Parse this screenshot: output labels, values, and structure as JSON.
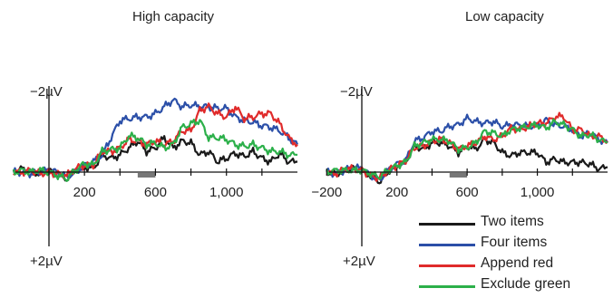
{
  "chart_data": [
    {
      "type": "line",
      "title": "High capacity",
      "xlabel": "",
      "ylabel": "",
      "y_top_label": "−2µV",
      "y_bottom_label": "+2µV",
      "x_tick_labels": [
        "200",
        "600",
        "1,000"
      ],
      "x_ticks": [
        200,
        400,
        600,
        800,
        1000,
        1200
      ],
      "xlim": [
        -200,
        1400
      ],
      "ylim_inverted": [
        2,
        -2
      ],
      "highlight_window": [
        500,
        600
      ],
      "x": [
        -200,
        -150,
        -100,
        -50,
        0,
        50,
        100,
        150,
        200,
        250,
        300,
        350,
        400,
        450,
        500,
        550,
        600,
        650,
        700,
        750,
        800,
        850,
        900,
        950,
        1000,
        1050,
        1100,
        1150,
        1200,
        1250,
        1300,
        1350,
        1400
      ],
      "series": [
        {
          "name": "Two items",
          "color": "#1a1a1a",
          "values": [
            0.0,
            0.1,
            0.0,
            -0.05,
            0.05,
            -0.1,
            -0.2,
            0.05,
            0.15,
            0.1,
            0.5,
            0.4,
            0.5,
            0.7,
            0.9,
            0.6,
            0.7,
            1.0,
            0.7,
            0.9,
            0.85,
            0.5,
            0.6,
            0.3,
            0.4,
            0.55,
            0.45,
            0.6,
            0.4,
            0.3,
            0.55,
            0.3,
            0.3
          ]
        },
        {
          "name": "Four items",
          "color": "#2b4fa8",
          "values": [
            0.0,
            0.0,
            -0.05,
            0.0,
            0.05,
            0.0,
            -0.15,
            0.0,
            0.2,
            0.3,
            0.5,
            1.0,
            1.5,
            1.55,
            1.6,
            1.6,
            1.7,
            1.9,
            2.1,
            1.9,
            1.95,
            1.9,
            1.9,
            1.85,
            1.85,
            1.6,
            1.5,
            1.45,
            1.35,
            1.3,
            1.2,
            1.0,
            0.8
          ]
        },
        {
          "name": "Append red",
          "color": "#e02b2b",
          "values": [
            0.0,
            0.0,
            0.05,
            -0.05,
            0.0,
            -0.05,
            -0.1,
            0.1,
            0.2,
            0.2,
            0.6,
            0.6,
            0.7,
            0.95,
            0.9,
            0.8,
            0.9,
            0.8,
            0.9,
            1.2,
            1.2,
            1.8,
            1.9,
            1.7,
            1.6,
            1.9,
            1.55,
            1.6,
            1.7,
            1.7,
            1.4,
            1.0,
            0.8
          ]
        },
        {
          "name": "Exclude green",
          "color": "#2cb04a",
          "values": [
            0.0,
            0.05,
            0.0,
            0.05,
            0.0,
            -0.1,
            -0.2,
            0.05,
            0.25,
            0.2,
            0.6,
            0.65,
            0.7,
            1.05,
            1.0,
            0.8,
            0.85,
            0.7,
            0.8,
            1.3,
            1.4,
            1.5,
            1.0,
            1.0,
            0.95,
            0.8,
            0.75,
            0.8,
            0.7,
            0.6,
            0.6,
            0.5,
            0.5
          ]
        }
      ]
    },
    {
      "type": "line",
      "title": "Low capacity",
      "xlabel": "",
      "ylabel": "",
      "y_top_label": "−2µV",
      "y_bottom_label": "+2µV",
      "x_tick_labels": [
        "−200",
        "200",
        "600",
        "1,000"
      ],
      "x_ticks": [
        -200,
        200,
        400,
        600,
        800,
        1000,
        1200
      ],
      "xlim": [
        -200,
        1400
      ],
      "ylim_inverted": [
        2,
        -2
      ],
      "highlight_window": [
        500,
        600
      ],
      "x": [
        -200,
        -150,
        -100,
        -50,
        0,
        50,
        100,
        150,
        200,
        250,
        300,
        350,
        400,
        450,
        500,
        550,
        600,
        650,
        700,
        750,
        800,
        850,
        900,
        950,
        1000,
        1050,
        1100,
        1150,
        1200,
        1250,
        1300,
        1350,
        1400
      ],
      "series": [
        {
          "name": "Two items",
          "color": "#1a1a1a",
          "values": [
            0.0,
            -0.05,
            0.05,
            0.1,
            0.05,
            -0.1,
            -0.3,
            0.0,
            0.2,
            0.3,
            0.8,
            0.7,
            0.9,
            0.9,
            0.8,
            0.6,
            0.8,
            0.7,
            1.0,
            0.9,
            0.6,
            0.5,
            0.6,
            0.6,
            0.6,
            0.3,
            0.4,
            0.3,
            0.3,
            0.3,
            0.25,
            0.1,
            0.15
          ]
        },
        {
          "name": "Four items",
          "color": "#2b4fa8",
          "values": [
            0.0,
            -0.05,
            0.05,
            0.15,
            0.1,
            -0.1,
            -0.25,
            0.05,
            0.25,
            0.35,
            0.95,
            1.05,
            1.25,
            1.25,
            1.4,
            1.45,
            1.65,
            1.55,
            1.5,
            1.55,
            1.4,
            1.45,
            1.45,
            1.4,
            1.4,
            1.6,
            1.45,
            1.4,
            1.3,
            1.1,
            1.2,
            1.0,
            0.9
          ]
        },
        {
          "name": "Append red",
          "color": "#e02b2b",
          "values": [
            0.0,
            -0.05,
            0.1,
            0.1,
            0.05,
            -0.1,
            -0.2,
            0.05,
            0.2,
            0.35,
            0.75,
            0.8,
            0.95,
            1.0,
            0.9,
            0.7,
            0.8,
            0.9,
            1.1,
            1.0,
            1.1,
            1.35,
            1.3,
            1.4,
            1.5,
            1.5,
            1.7,
            1.7,
            1.3,
            1.3,
            1.1,
            1.1,
            0.95
          ]
        },
        {
          "name": "Exclude green",
          "color": "#2cb04a",
          "values": [
            0.0,
            0.05,
            0.05,
            0.05,
            0.05,
            -0.05,
            -0.15,
            0.05,
            0.2,
            0.3,
            0.8,
            0.9,
            1.0,
            1.0,
            0.95,
            0.7,
            0.75,
            0.9,
            1.25,
            1.2,
            1.1,
            1.3,
            1.35,
            1.4,
            1.45,
            1.35,
            1.55,
            1.45,
            1.3,
            1.1,
            1.15,
            1.0,
            0.9
          ]
        }
      ]
    }
  ],
  "legend": [
    {
      "label": "Two items",
      "color": "#1a1a1a"
    },
    {
      "label": "Four items",
      "color": "#2b4fa8"
    },
    {
      "label": "Append red",
      "color": "#e02b2b"
    },
    {
      "label": "Exclude green",
      "color": "#2cb04a"
    }
  ]
}
